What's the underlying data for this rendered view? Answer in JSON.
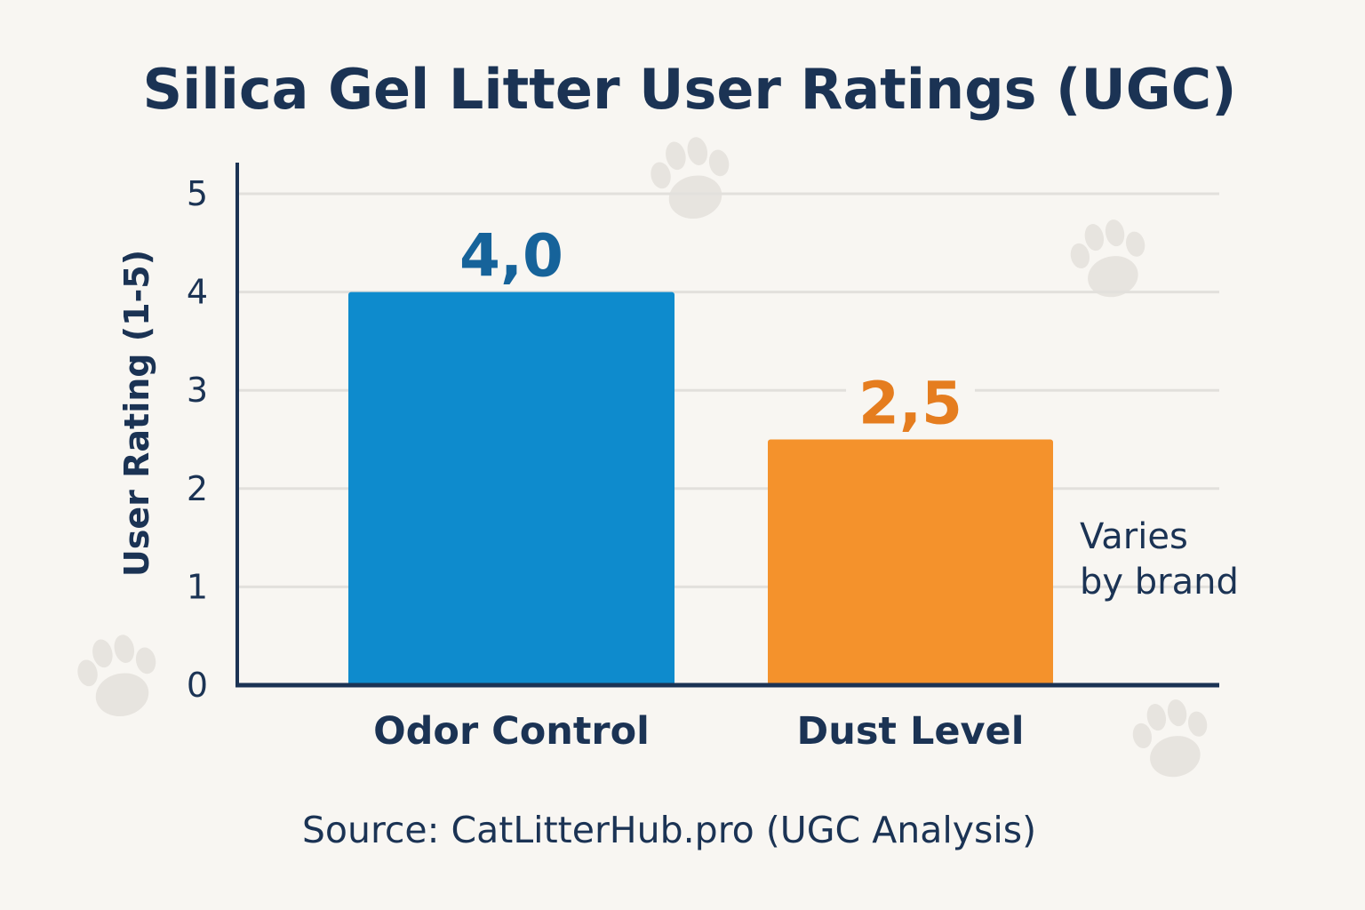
{
  "colors": {
    "background": "#f8f6f2",
    "ink": "#1b3354",
    "grid": "#e2e0dc",
    "paw": "#e7e4df",
    "odor_bar": "#0e8bcd",
    "odor_label": "#16639a",
    "dust_bar": "#f4922c",
    "dust_label": "#e57d1f"
  },
  "decor_icon": "paw-print-icon",
  "chart_data": {
    "type": "bar",
    "title": "Silica Gel Litter User Ratings (UGC)",
    "xlabel": "",
    "ylabel": "User Rating (1-5)",
    "ylim": [
      0,
      5
    ],
    "yticks": [
      0,
      1,
      2,
      3,
      4,
      5
    ],
    "grid": true,
    "categories": [
      "Odor Control",
      "Dust Level"
    ],
    "values": [
      4.0,
      2.5
    ],
    "value_labels": [
      "4,0",
      "2,5"
    ],
    "bar_colors": [
      "#0e8bcd",
      "#f4922c"
    ],
    "label_colors": [
      "#16639a",
      "#e57d1f"
    ],
    "annotation": [
      "Varies",
      "by brand"
    ],
    "source": "Source: CatLitterHub.pro (UGC Analysis)"
  }
}
